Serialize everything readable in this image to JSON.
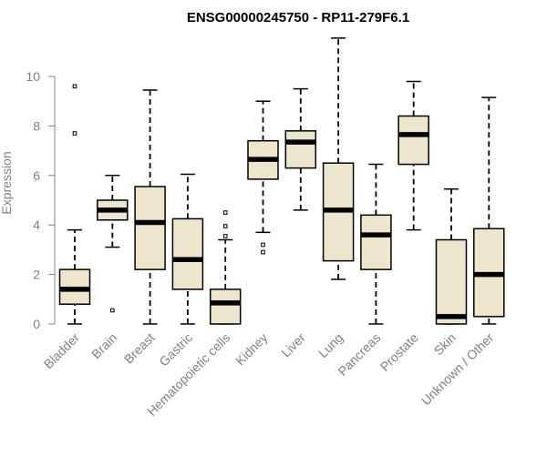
{
  "chart_data": {
    "type": "boxplot",
    "title": "ENSG00000245750 - RP11-279F6.1",
    "xlabel": "",
    "ylabel": "Expression",
    "ylim": [
      0,
      11.5
    ],
    "yticks": [
      0,
      2,
      4,
      6,
      8,
      10
    ],
    "box_fill": "#ede6cc",
    "categories": [
      "Bladder",
      "Brain",
      "Breast",
      "Gastric",
      "Hematopoietic cells",
      "Kidney",
      "Liver",
      "Lung",
      "Pancreas",
      "Prostate",
      "Skin",
      "Unknown / Other"
    ],
    "boxes": [
      {
        "min": 0.0,
        "q1": 0.8,
        "median": 1.4,
        "q3": 2.2,
        "max": 3.8,
        "outliers": [
          7.7,
          9.6
        ]
      },
      {
        "min": 3.1,
        "q1": 4.2,
        "median": 4.6,
        "q3": 5.0,
        "max": 6.0,
        "outliers": [
          0.55
        ]
      },
      {
        "min": 0.0,
        "q1": 2.2,
        "median": 4.1,
        "q3": 5.55,
        "max": 9.45,
        "outliers": []
      },
      {
        "min": 0.0,
        "q1": 1.4,
        "median": 2.6,
        "q3": 4.25,
        "max": 6.05,
        "outliers": []
      },
      {
        "min": 0.0,
        "q1": 0.0,
        "median": 0.85,
        "q3": 1.4,
        "max": 3.4,
        "outliers": [
          3.55,
          3.95,
          4.5
        ]
      },
      {
        "min": 3.7,
        "q1": 5.85,
        "median": 6.65,
        "q3": 7.4,
        "max": 9.0,
        "outliers": [
          2.9,
          3.2
        ]
      },
      {
        "min": 4.6,
        "q1": 6.3,
        "median": 7.35,
        "q3": 7.8,
        "max": 9.5,
        "outliers": []
      },
      {
        "min": 1.8,
        "q1": 2.55,
        "median": 4.6,
        "q3": 6.5,
        "max": 11.55,
        "outliers": []
      },
      {
        "min": 0.0,
        "q1": 2.2,
        "median": 3.6,
        "q3": 4.4,
        "max": 6.45,
        "outliers": []
      },
      {
        "min": 3.8,
        "q1": 6.45,
        "median": 7.65,
        "q3": 8.4,
        "max": 9.8,
        "outliers": []
      },
      {
        "min": 0.0,
        "q1": 0.0,
        "median": 0.3,
        "q3": 3.4,
        "max": 5.45,
        "outliers": []
      },
      {
        "min": 0.0,
        "q1": 0.3,
        "median": 2.0,
        "q3": 3.85,
        "max": 9.15,
        "outliers": []
      }
    ]
  }
}
